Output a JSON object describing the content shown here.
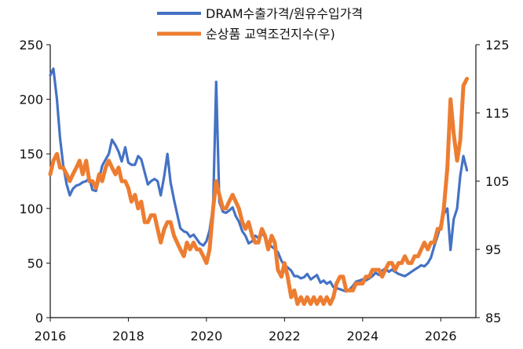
{
  "chart_data": {
    "type": "line",
    "title": "",
    "xlabel": "",
    "ylabel": "",
    "legend_position": "top-center",
    "grid": false,
    "x_ticks": [
      "2016",
      "2018",
      "2020",
      "2022",
      "2024",
      "2026"
    ],
    "x_range": [
      2016,
      2026.9
    ],
    "y_left_range": [
      0,
      250
    ],
    "y_left_ticks": [
      "0",
      "50",
      "100",
      "150",
      "200",
      "250"
    ],
    "y_right_range": [
      85,
      125
    ],
    "y_right_ticks": [
      "85",
      "95",
      "105",
      "115",
      "125"
    ],
    "colors": {
      "DRAM수출가격/원유수입가격": "#4472C4",
      "순상품 교역조건지수(우)": "#ED7D31"
    },
    "series": [
      {
        "name": "DRAM수출가격/원유수입가격",
        "axis": "left",
        "x": [
          2016.0,
          2016.08,
          2016.17,
          2016.25,
          2016.33,
          2016.42,
          2016.5,
          2016.58,
          2016.67,
          2016.75,
          2016.83,
          2016.92,
          2017.0,
          2017.08,
          2017.17,
          2017.25,
          2017.33,
          2017.42,
          2017.5,
          2017.58,
          2017.67,
          2017.75,
          2017.83,
          2017.92,
          2018.0,
          2018.08,
          2018.17,
          2018.25,
          2018.33,
          2018.42,
          2018.5,
          2018.58,
          2018.67,
          2018.75,
          2018.83,
          2018.92,
          2019.0,
          2019.08,
          2019.17,
          2019.25,
          2019.33,
          2019.42,
          2019.5,
          2019.58,
          2019.67,
          2019.75,
          2019.83,
          2019.92,
          2020.0,
          2020.08,
          2020.17,
          2020.25,
          2020.33,
          2020.42,
          2020.5,
          2020.58,
          2020.67,
          2020.75,
          2020.83,
          2020.92,
          2021.0,
          2021.08,
          2021.17,
          2021.25,
          2021.33,
          2021.42,
          2021.5,
          2021.58,
          2021.67,
          2021.75,
          2021.83,
          2021.92,
          2022.0,
          2022.08,
          2022.17,
          2022.25,
          2022.33,
          2022.42,
          2022.5,
          2022.58,
          2022.67,
          2022.75,
          2022.83,
          2022.92,
          2023.0,
          2023.08,
          2023.17,
          2023.25,
          2023.33,
          2023.42,
          2023.5,
          2023.58,
          2023.67,
          2023.75,
          2023.83,
          2023.92,
          2024.0,
          2024.08,
          2024.17,
          2024.25,
          2024.33,
          2024.42,
          2024.5,
          2024.58,
          2024.67,
          2024.75,
          2024.83,
          2024.92,
          2025.0,
          2025.08,
          2025.17,
          2025.25,
          2025.33,
          2025.42,
          2025.5,
          2025.58,
          2025.67,
          2025.75,
          2025.83,
          2025.92,
          2026.0,
          2026.08,
          2026.17,
          2026.25,
          2026.33,
          2026.42,
          2026.5,
          2026.58,
          2026.67
        ],
        "y": [
          222,
          228,
          200,
          165,
          140,
          122,
          112,
          118,
          121,
          122,
          124,
          125,
          128,
          117,
          116,
          127,
          139,
          145,
          150,
          163,
          158,
          152,
          143,
          156,
          142,
          140,
          140,
          148,
          145,
          133,
          122,
          125,
          127,
          125,
          112,
          130,
          150,
          124,
          108,
          95,
          82,
          79,
          78,
          74,
          76,
          72,
          68,
          66,
          70,
          80,
          102,
          216,
          106,
          97,
          96,
          98,
          101,
          93,
          88,
          79,
          75,
          68,
          70,
          75,
          73,
          77,
          74,
          68,
          65,
          63,
          60,
          52,
          48,
          46,
          43,
          38,
          38,
          36,
          37,
          40,
          35,
          37,
          39,
          32,
          34,
          31,
          33,
          28,
          27,
          26,
          25,
          24,
          26,
          29,
          33,
          34,
          35,
          34,
          36,
          38,
          41,
          39,
          43,
          45,
          42,
          44,
          42,
          40,
          39,
          38,
          40,
          42,
          44,
          46,
          48,
          47,
          50,
          55,
          65,
          75,
          85,
          95,
          100,
          62,
          90,
          100,
          130,
          148,
          135
        ]
      },
      {
        "name": "순상품 교역조건지수(우)",
        "axis": "right",
        "x": [
          2016.0,
          2016.08,
          2016.17,
          2016.25,
          2016.33,
          2016.42,
          2016.5,
          2016.58,
          2016.67,
          2016.75,
          2016.83,
          2016.92,
          2017.0,
          2017.08,
          2017.17,
          2017.25,
          2017.33,
          2017.42,
          2017.5,
          2017.58,
          2017.67,
          2017.75,
          2017.83,
          2017.92,
          2018.0,
          2018.08,
          2018.17,
          2018.25,
          2018.33,
          2018.42,
          2018.5,
          2018.58,
          2018.67,
          2018.75,
          2018.83,
          2018.92,
          2019.0,
          2019.08,
          2019.17,
          2019.25,
          2019.33,
          2019.42,
          2019.5,
          2019.58,
          2019.67,
          2019.75,
          2019.83,
          2019.92,
          2020.0,
          2020.08,
          2020.17,
          2020.25,
          2020.33,
          2020.42,
          2020.5,
          2020.58,
          2020.67,
          2020.75,
          2020.83,
          2020.92,
          2021.0,
          2021.08,
          2021.17,
          2021.25,
          2021.33,
          2021.42,
          2021.5,
          2021.58,
          2021.67,
          2021.75,
          2021.83,
          2021.92,
          2022.0,
          2022.08,
          2022.17,
          2022.25,
          2022.33,
          2022.42,
          2022.5,
          2022.58,
          2022.67,
          2022.75,
          2022.83,
          2022.92,
          2023.0,
          2023.08,
          2023.17,
          2023.25,
          2023.33,
          2023.42,
          2023.5,
          2023.58,
          2023.67,
          2023.75,
          2023.83,
          2023.92,
          2024.0,
          2024.08,
          2024.17,
          2024.25,
          2024.33,
          2024.42,
          2024.5,
          2024.58,
          2024.67,
          2024.75,
          2024.83,
          2024.92,
          2025.0,
          2025.08,
          2025.17,
          2025.25,
          2025.33,
          2025.42,
          2025.5,
          2025.58,
          2025.67,
          2025.75,
          2025.83,
          2025.92,
          2026.0,
          2026.08,
          2026.17,
          2026.25,
          2026.33,
          2026.42,
          2026.5,
          2026.58,
          2026.67
        ],
        "y": [
          106,
          108,
          109,
          107,
          107,
          106,
          105,
          106,
          107,
          108,
          106,
          108,
          105,
          105,
          104,
          106,
          105,
          107,
          108,
          107,
          106,
          107,
          105,
          105,
          104,
          102,
          103,
          101,
          102,
          99,
          99,
          100,
          100,
          98,
          96,
          98,
          99,
          99,
          97,
          96,
          95,
          94,
          96,
          95,
          96,
          95,
          95,
          94,
          93,
          95,
          101,
          105,
          103,
          101,
          101,
          102,
          103,
          102,
          101,
          99,
          98,
          99,
          97,
          96,
          96,
          98,
          97,
          95,
          97,
          96,
          92,
          91,
          93,
          91,
          88,
          89,
          87,
          88,
          87,
          88,
          87,
          88,
          87,
          88,
          87,
          88,
          87,
          88,
          90,
          91,
          91,
          89,
          89,
          89,
          90,
          90,
          90,
          91,
          91,
          92,
          92,
          92,
          91,
          92,
          93,
          93,
          92,
          93,
          93,
          94,
          93,
          93,
          94,
          94,
          95,
          96,
          95,
          96,
          96,
          98,
          98,
          101,
          107,
          117,
          112,
          108,
          111,
          119,
          120
        ]
      }
    ]
  }
}
